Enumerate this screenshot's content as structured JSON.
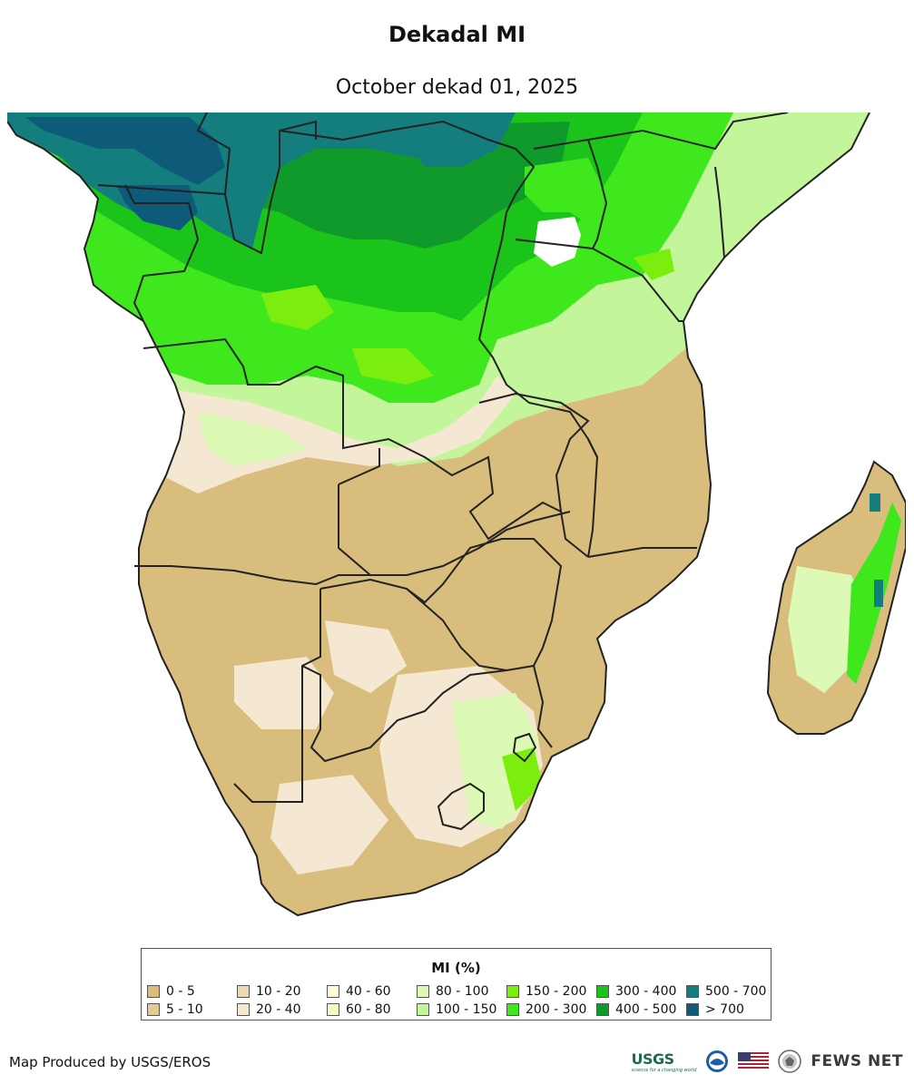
{
  "title": "Dekadal MI",
  "subtitle": "October dekad 01, 2025",
  "legend": {
    "title": "MI (%)",
    "items": [
      {
        "label": "0 - 5",
        "color": "#d8bd7c"
      },
      {
        "label": "5 - 10",
        "color": "#e3cb98"
      },
      {
        "label": "10 - 20",
        "color": "#ecd9b6"
      },
      {
        "label": "20 - 40",
        "color": "#f5e8d3"
      },
      {
        "label": "40 - 60",
        "color": "#fefcd9"
      },
      {
        "label": "60 - 80",
        "color": "#f6fbc2"
      },
      {
        "label": "80 - 100",
        "color": "#dcf9b5"
      },
      {
        "label": "100 - 150",
        "color": "#c3f59b"
      },
      {
        "label": "150 - 200",
        "color": "#7cee0d"
      },
      {
        "label": "200 - 300",
        "color": "#3fe81d"
      },
      {
        "label": "300 - 400",
        "color": "#1bc41b"
      },
      {
        "label": "400 - 500",
        "color": "#0f9a2b"
      },
      {
        "label": "500 - 700",
        "color": "#147d7d"
      },
      {
        "label": "> 700",
        "color": "#0d5b78"
      }
    ]
  },
  "credit": "Map Produced by USGS/EROS",
  "logos": {
    "usgs": "USGS",
    "usgs_tagline": "science for a changing world",
    "fews": "FEWS NET"
  },
  "icons": [
    "usgs-logo",
    "noaa-logo-icon",
    "us-flag-icon",
    "state-dept-seal-icon"
  ]
}
